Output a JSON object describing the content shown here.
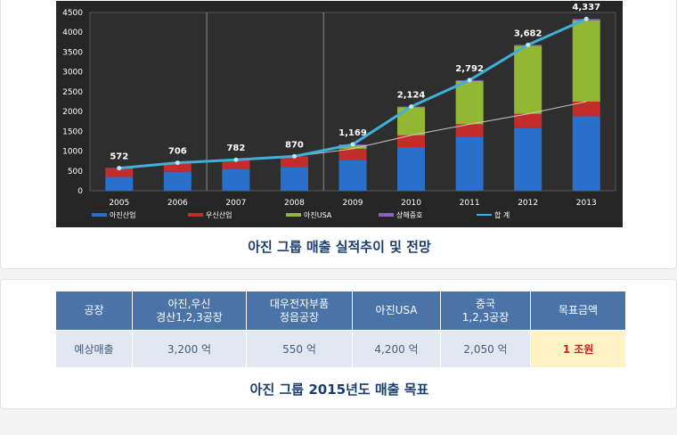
{
  "chart_data": {
    "type": "bar",
    "title": "아진 그룹 매출 실적추이 및 전망",
    "categories": [
      "2005",
      "2006",
      "2007",
      "2008",
      "2009",
      "2010",
      "2011",
      "2012",
      "2013"
    ],
    "ylim": [
      0,
      4500
    ],
    "yticks": [
      0,
      500,
      1000,
      1500,
      2000,
      2500,
      3000,
      3500,
      4000,
      4500
    ],
    "series": [
      {
        "name": "아진산업",
        "color": "#2a6fc9",
        "values": [
          350,
          480,
          540,
          600,
          780,
          1100,
          1350,
          1580,
          1880
        ]
      },
      {
        "name": "우신산업",
        "color": "#c42b2b",
        "values": [
          220,
          226,
          242,
          270,
          280,
          300,
          330,
          360,
          370
        ]
      },
      {
        "name": "아진USA",
        "color": "#92b833",
        "values": [
          0,
          0,
          0,
          0,
          90,
          704,
          1092,
          1722,
          2047
        ]
      },
      {
        "name": "상해중호",
        "color": "#8a62c0",
        "values": [
          2,
          0,
          0,
          0,
          19,
          20,
          20,
          20,
          40
        ]
      }
    ],
    "total": {
      "name": "합 계",
      "color": "#3fb0d8",
      "values": [
        572,
        706,
        782,
        870,
        1169,
        2124,
        2792,
        3682,
        4337
      ]
    },
    "total_labels": [
      "572",
      "706",
      "782",
      "870",
      "1,169",
      "2,124",
      "2,792",
      "3,682",
      "4,337"
    ]
  },
  "captions": {
    "chart": "아진 그룹 매출 실적추이 및 전망",
    "table": "아진 그룹 2015년도 매출 목표"
  },
  "table": {
    "header": {
      "factory": "공장",
      "ajin_wooshin_1": "아진,우신",
      "ajin_wooshin_2": "경산1,2,3공장",
      "daewoo_1": "대우전자부품",
      "daewoo_2": "정읍공장",
      "usa": "아진USA",
      "china_1": "중국",
      "china_2": "1,2,3공장",
      "target": "목표금액"
    },
    "row": {
      "label": "예상매출",
      "ajin_wooshin": "3,200 억",
      "daewoo": "550 억",
      "usa": "4,200 억",
      "china": "2,050 억",
      "target": "1 조원"
    }
  }
}
